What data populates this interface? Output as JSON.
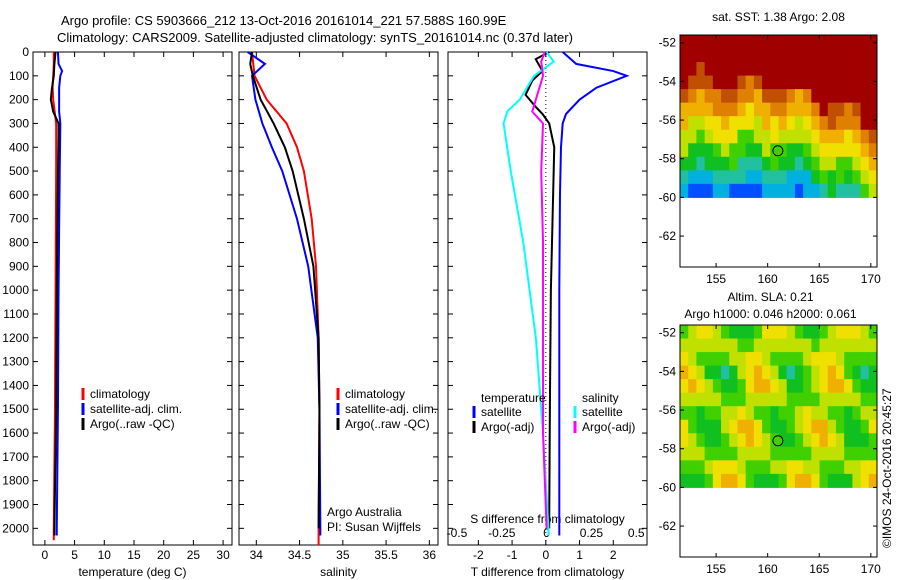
{
  "titles": {
    "line1": "Argo profile: CS 5903666_212 13-Oct-2016 20161014_221 57.588S 160.99E",
    "line2": "Climatology: CARS2009. Satellite-adjusted climatology: synTS_20161014.nc (0.37d later)"
  },
  "colors": {
    "climatology": "#ff0000",
    "satellite": "#0000ff",
    "argo": "#000000",
    "s_satellite": "#00ffff",
    "s_argo": "#ff00ff"
  },
  "credit": "©IMOS 24-Oct-2016 20:45:27",
  "chart_data": [
    {
      "type": "line",
      "id": "temperature",
      "xlabel": "temperature (deg C)",
      "ylabel": "",
      "xlim": [
        -2,
        31.5
      ],
      "ylim": [
        2070,
        0
      ],
      "xticks": [
        0,
        5,
        10,
        15,
        20,
        25,
        30
      ],
      "yticks": [
        0,
        100,
        200,
        300,
        400,
        500,
        600,
        700,
        800,
        900,
        1000,
        1100,
        1200,
        1300,
        1400,
        1500,
        1600,
        1700,
        1800,
        1900,
        2000
      ],
      "legend": [
        "climatology",
        "satellite-adj. clim.",
        "Argo(..raw -QC)"
      ],
      "series": [
        {
          "name": "climatology",
          "color": "red",
          "depth": [
            0,
            50,
            100,
            150,
            200,
            300,
            500,
            1000,
            1500,
            2000,
            2050
          ],
          "values": [
            1.5,
            1.5,
            1.4,
            1.3,
            1.4,
            1.9,
            1.9,
            1.8,
            1.7,
            1.5,
            1.5
          ]
        },
        {
          "name": "satellite-adj. clim.",
          "color": "blue",
          "depth": [
            0,
            50,
            80,
            100,
            150,
            250,
            300,
            500,
            1000,
            1500,
            2000,
            2030
          ],
          "values": [
            2.2,
            2.3,
            2.9,
            2.6,
            2.4,
            2.4,
            2.6,
            2.5,
            2.3,
            2.2,
            2.0,
            2.0
          ]
        },
        {
          "name": "Argo",
          "color": "black",
          "depth": [
            0,
            50,
            100,
            150,
            200,
            250,
            300,
            350,
            500,
            1000,
            1500,
            2000,
            2030
          ],
          "values": [
            1.8,
            1.6,
            1.5,
            1.2,
            1.0,
            1.4,
            2.3,
            2.3,
            2.2,
            2.0,
            1.9,
            1.6,
            1.6
          ]
        }
      ]
    },
    {
      "type": "line",
      "id": "salinity",
      "xlabel": "salinity",
      "xlim": [
        33.8,
        36.1
      ],
      "ylim": [
        2070,
        0
      ],
      "xticks": [
        34,
        34.5,
        35,
        35.5,
        36
      ],
      "legend": [
        "climatology",
        "satellite-adj. clim.",
        "Argo(..raw -QC)"
      ],
      "annotation": [
        "Argo Australia",
        "PI: Susan Wijffels"
      ],
      "series": [
        {
          "name": "climatology",
          "color": "red",
          "depth": [
            0,
            100,
            200,
            300,
            400,
            500,
            700,
            900,
            1200,
            1500,
            2000,
            2070
          ],
          "values": [
            33.95,
            33.98,
            34.12,
            34.35,
            34.47,
            34.55,
            34.64,
            34.69,
            34.72,
            34.73,
            34.72,
            34.72
          ]
        },
        {
          "name": "satellite-adj. clim.",
          "color": "blue",
          "depth": [
            0,
            50,
            100,
            150,
            200,
            300,
            400,
            500,
            700,
            900,
            1200,
            1500,
            2000,
            2030
          ],
          "values": [
            33.9,
            34.1,
            33.95,
            33.97,
            33.99,
            34.07,
            34.18,
            34.3,
            34.47,
            34.6,
            34.71,
            34.73,
            34.74,
            34.74
          ]
        },
        {
          "name": "Argo",
          "color": "black",
          "depth": [
            0,
            50,
            100,
            200,
            300,
            400,
            500,
            700,
            900,
            1200,
            1500,
            2000
          ],
          "values": [
            33.95,
            33.93,
            33.96,
            34.05,
            34.2,
            34.33,
            34.42,
            34.55,
            34.66,
            34.72,
            34.73,
            34.72
          ]
        }
      ]
    },
    {
      "type": "line",
      "id": "difference",
      "xlabel": "T difference from climatology",
      "x2label": "S difference from climatology",
      "xlim": [
        -2.9,
        3.0
      ],
      "x2lim": [
        -0.55,
        0.56
      ],
      "ylim": [
        2070,
        0
      ],
      "xticks": [
        -2,
        -1,
        0,
        1,
        2
      ],
      "x2ticks": [
        -0.5,
        -0.25,
        0,
        0.25,
        0.5
      ],
      "x2ticklabels": [
        "-0.5",
        "-0.25",
        "0",
        "0.25",
        "0.5"
      ],
      "legend_headers": [
        "temperature",
        "salinity"
      ],
      "legend": [
        "satellite",
        "Argo(-adj)",
        "satellite",
        "Argo(-adj)"
      ],
      "series": [
        {
          "name": "T satellite",
          "color": "blue",
          "depth": [
            0,
            50,
            80,
            100,
            150,
            200,
            260,
            300,
            400,
            600,
            1000,
            1500,
            2000,
            2030
          ],
          "values": [
            0.5,
            0.9,
            2.0,
            2.4,
            1.5,
            1.0,
            0.6,
            0.5,
            0.45,
            0.42,
            0.4,
            0.4,
            0.4,
            0.4
          ]
        },
        {
          "name": "T Argo",
          "color": "black",
          "depth": [
            0,
            30,
            80,
            120,
            180,
            230,
            260,
            300,
            400,
            700,
            1000,
            1500,
            2000
          ],
          "values": [
            0.1,
            -0.3,
            -0.1,
            -0.4,
            -0.6,
            -0.3,
            -0.1,
            0.1,
            0.25,
            0.2,
            0.15,
            0.12,
            0.1
          ]
        },
        {
          "name": "S satellite",
          "color": "cyan",
          "depth": [
            0,
            40,
            100,
            200,
            250,
            300,
            500,
            800,
            1200,
            1600,
            2000,
            2030
          ],
          "values": [
            0.0,
            0.04,
            -0.07,
            -0.15,
            -0.22,
            -0.24,
            -0.2,
            -0.13,
            -0.06,
            -0.02,
            0.01,
            0.01
          ]
        },
        {
          "name": "S Argo",
          "color": "magenta",
          "depth": [
            0,
            40,
            100,
            200,
            250,
            300,
            500,
            800,
            1200,
            1600,
            2000
          ],
          "values": [
            -0.01,
            -0.03,
            -0.02,
            -0.06,
            -0.08,
            -0.02,
            -0.03,
            -0.02,
            -0.02,
            -0.02,
            0.0
          ]
        }
      ]
    },
    {
      "type": "heatmap",
      "id": "sst",
      "title": "sat. SST: 1.38 Argo: 2.08",
      "xlim": [
        151.5,
        170.6
      ],
      "ylim": [
        -63.6,
        -51.6
      ],
      "xticks": [
        155,
        160,
        165,
        170
      ],
      "yticks": [
        -52,
        -54,
        -56,
        -58,
        -60,
        -62
      ],
      "data_lat_range": [
        -60,
        -51.6
      ],
      "argo_position": [
        160.99,
        -57.588
      ]
    },
    {
      "type": "heatmap",
      "id": "sla",
      "title": "Altim. SLA: 0.21",
      "subtitle": "Argo h1000: 0.046 h2000: 0.061",
      "xlim": [
        151.5,
        170.6
      ],
      "ylim": [
        -63.6,
        -51.6
      ],
      "xticks": [
        155,
        160,
        165,
        170
      ],
      "yticks": [
        -52,
        -54,
        -56,
        -58,
        -60,
        -62
      ],
      "data_lat_range": [
        -60,
        -51.6
      ],
      "argo_position": [
        160.99,
        -57.588
      ]
    }
  ]
}
